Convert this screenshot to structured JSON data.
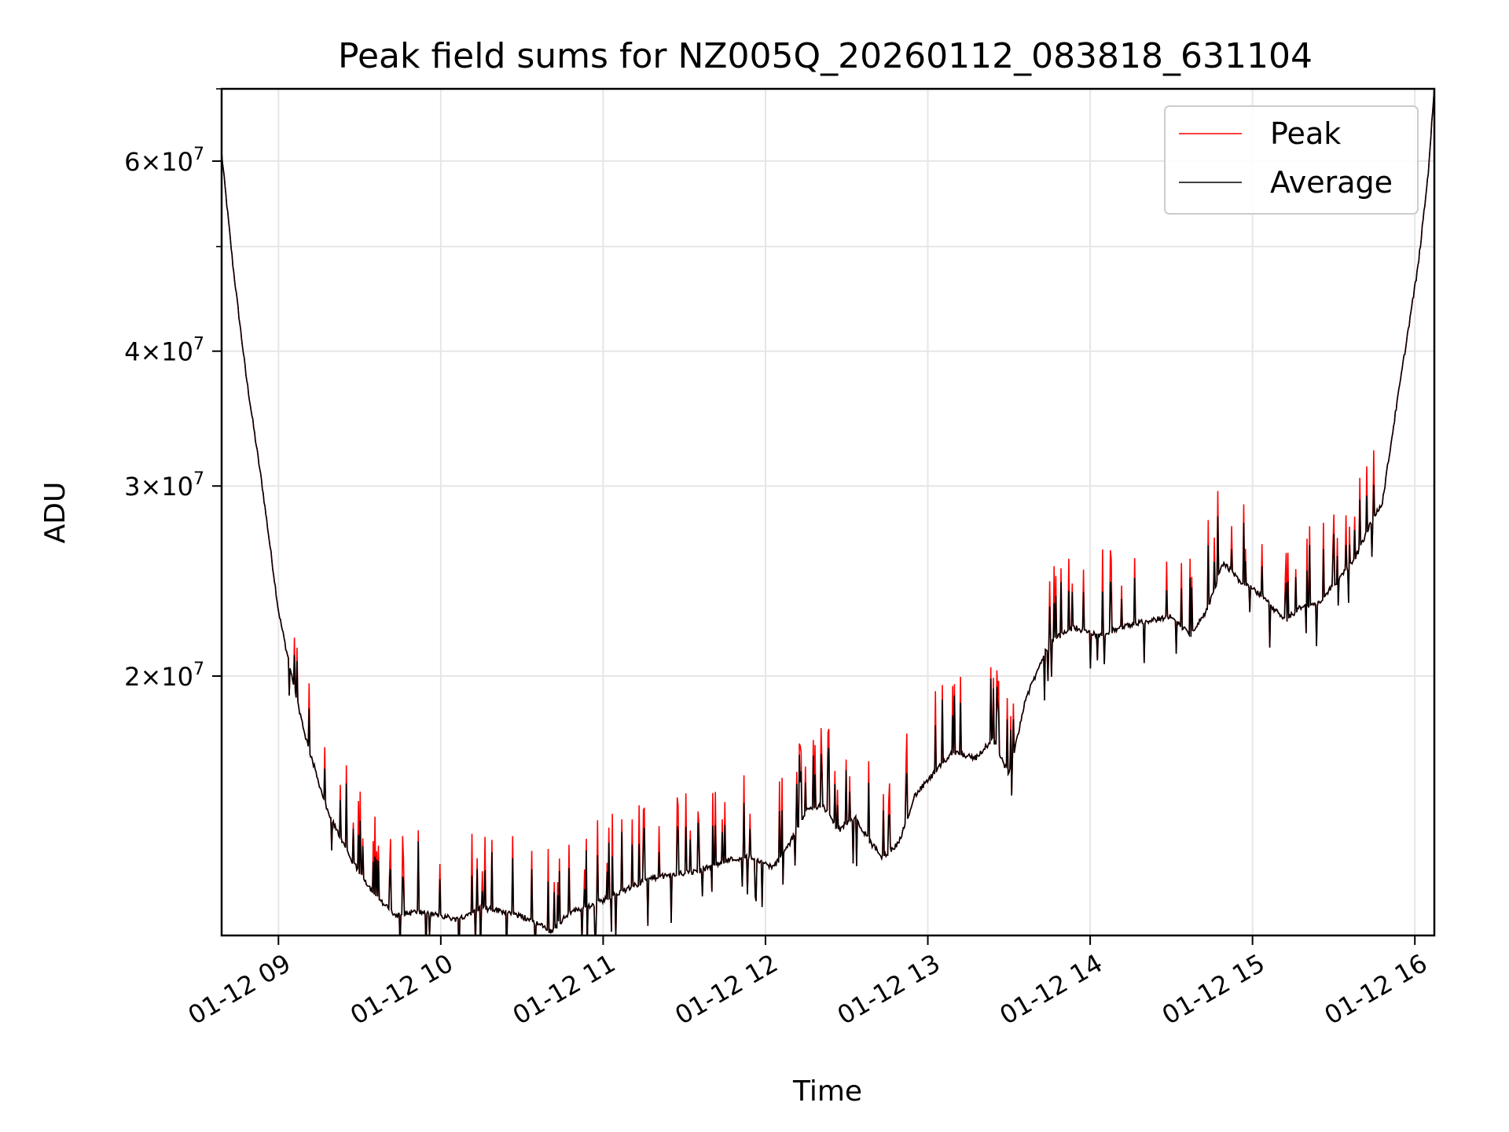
{
  "chart_data": {
    "type": "line",
    "title": "Peak field sums for NZ005Q_20260112_083818_631104",
    "xlabel": "Time",
    "ylabel": "ADU",
    "y_scale": "log",
    "grid": true,
    "legend_position": "upper right",
    "xlim_hours": [
      8.65,
      16.12
    ],
    "ylim": [
      11500000,
      70000000
    ],
    "x_ticks": [
      {
        "hour": 9,
        "label": "01-12 09"
      },
      {
        "hour": 10,
        "label": "01-12 10"
      },
      {
        "hour": 11,
        "label": "01-12 11"
      },
      {
        "hour": 12,
        "label": "01-12 12"
      },
      {
        "hour": 13,
        "label": "01-12 13"
      },
      {
        "hour": 14,
        "label": "01-12 14"
      },
      {
        "hour": 15,
        "label": "01-12 15"
      },
      {
        "hour": 16,
        "label": "01-12 16"
      }
    ],
    "y_ticks": [
      {
        "value": 20000000,
        "mantissa": "2",
        "base": "10",
        "exp": "7"
      },
      {
        "value": 30000000,
        "mantissa": "3",
        "base": "10",
        "exp": "7"
      },
      {
        "value": 40000000,
        "mantissa": "4",
        "base": "10",
        "exp": "7"
      },
      {
        "value": 60000000,
        "mantissa": "6",
        "base": "10",
        "exp": "7"
      }
    ],
    "y_minor_ticks": [
      50000000,
      70000000
    ],
    "times_sign": "×",
    "series": [
      {
        "name": "Peak",
        "color": "#ff0000",
        "spike_fraction": 0.07,
        "note": "follows average baseline with frequent upward spikes"
      },
      {
        "name": "Average",
        "color": "#000000",
        "points": [
          [
            8.65,
            61000000
          ],
          [
            8.72,
            48000000
          ],
          [
            8.8,
            38000000
          ],
          [
            8.9,
            30000000
          ],
          [
            9.0,
            23000000
          ],
          [
            9.08,
            20000000
          ],
          [
            9.17,
            17500000
          ],
          [
            9.3,
            15000000
          ],
          [
            9.45,
            13500000
          ],
          [
            9.6,
            12500000
          ],
          [
            9.72,
            12000000
          ],
          [
            9.85,
            12100000
          ],
          [
            10.0,
            12000000
          ],
          [
            10.1,
            11900000
          ],
          [
            10.25,
            12200000
          ],
          [
            10.4,
            12100000
          ],
          [
            10.55,
            11900000
          ],
          [
            10.68,
            11600000
          ],
          [
            10.8,
            12100000
          ],
          [
            10.95,
            12300000
          ],
          [
            11.05,
            12500000
          ],
          [
            11.15,
            12700000
          ],
          [
            11.3,
            13000000
          ],
          [
            11.45,
            13100000
          ],
          [
            11.6,
            13200000
          ],
          [
            11.75,
            13500000
          ],
          [
            11.9,
            13600000
          ],
          [
            12.05,
            13300000
          ],
          [
            12.15,
            14000000
          ],
          [
            12.25,
            15000000
          ],
          [
            12.35,
            15200000
          ],
          [
            12.45,
            14400000
          ],
          [
            12.55,
            14800000
          ],
          [
            12.65,
            14000000
          ],
          [
            12.72,
            13600000
          ],
          [
            12.82,
            14000000
          ],
          [
            12.92,
            15500000
          ],
          [
            13.0,
            16000000
          ],
          [
            13.15,
            17000000
          ],
          [
            13.3,
            16800000
          ],
          [
            13.4,
            17500000
          ],
          [
            13.5,
            16200000
          ],
          [
            13.6,
            19000000
          ],
          [
            13.75,
            21500000
          ],
          [
            13.9,
            22200000
          ],
          [
            14.05,
            21800000
          ],
          [
            14.2,
            22200000
          ],
          [
            14.35,
            22500000
          ],
          [
            14.5,
            22700000
          ],
          [
            14.62,
            21800000
          ],
          [
            14.72,
            23000000
          ],
          [
            14.82,
            25500000
          ],
          [
            14.92,
            24500000
          ],
          [
            15.05,
            23800000
          ],
          [
            15.2,
            22500000
          ],
          [
            15.3,
            23200000
          ],
          [
            15.4,
            23300000
          ],
          [
            15.52,
            24500000
          ],
          [
            15.62,
            25500000
          ],
          [
            15.72,
            27500000
          ],
          [
            15.8,
            29000000
          ],
          [
            15.88,
            35000000
          ],
          [
            15.95,
            41000000
          ],
          [
            16.02,
            48000000
          ],
          [
            16.08,
            58000000
          ],
          [
            16.12,
            70000000
          ]
        ]
      }
    ]
  }
}
